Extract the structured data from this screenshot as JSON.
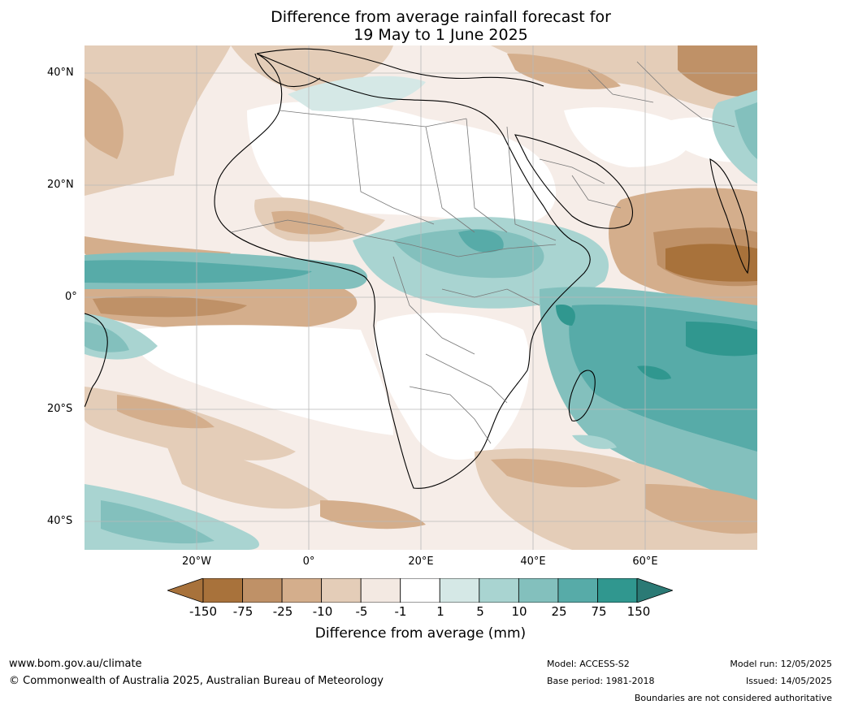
{
  "title": {
    "line1": "Difference from average rainfall forecast for",
    "line2": "19 May to 1 June 2025"
  },
  "axes": {
    "lat_labels": [
      "40°N",
      "20°N",
      "0°",
      "20°S",
      "40°S"
    ],
    "lon_labels": [
      "20°W",
      "0°",
      "20°E",
      "40°E",
      "60°E"
    ],
    "lat_range": [
      -45,
      45
    ],
    "lon_range": [
      -40,
      80
    ],
    "grid": true
  },
  "colorbar": {
    "title": "Difference from average (mm)",
    "ticks": [
      "-150",
      "-75",
      "-25",
      "-10",
      "-5",
      "-1",
      "1",
      "5",
      "10",
      "25",
      "75",
      "150"
    ],
    "colors": [
      "#a8723b",
      "#bf9167",
      "#d4ae8c",
      "#e4cdb8",
      "#f3e9e2",
      "#ffffff",
      "#d5e8e6",
      "#a9d4d1",
      "#83c0bd",
      "#57aba8",
      "#30978f"
    ],
    "under_color": "#a8723b",
    "over_color": "#2b7a75"
  },
  "footer": {
    "website": "www.bom.gov.au/climate",
    "copyright": "© Commonwealth of Australia 2025, Australian Bureau of Meteorology",
    "model": "Model: ACCESS-S2",
    "base_period": "Base period: 1981-2018",
    "model_run": "Model run: 12/05/2025",
    "issued": "Issued: 14/05/2025",
    "disclaimer": "Boundaries are not considered authoritative"
  }
}
